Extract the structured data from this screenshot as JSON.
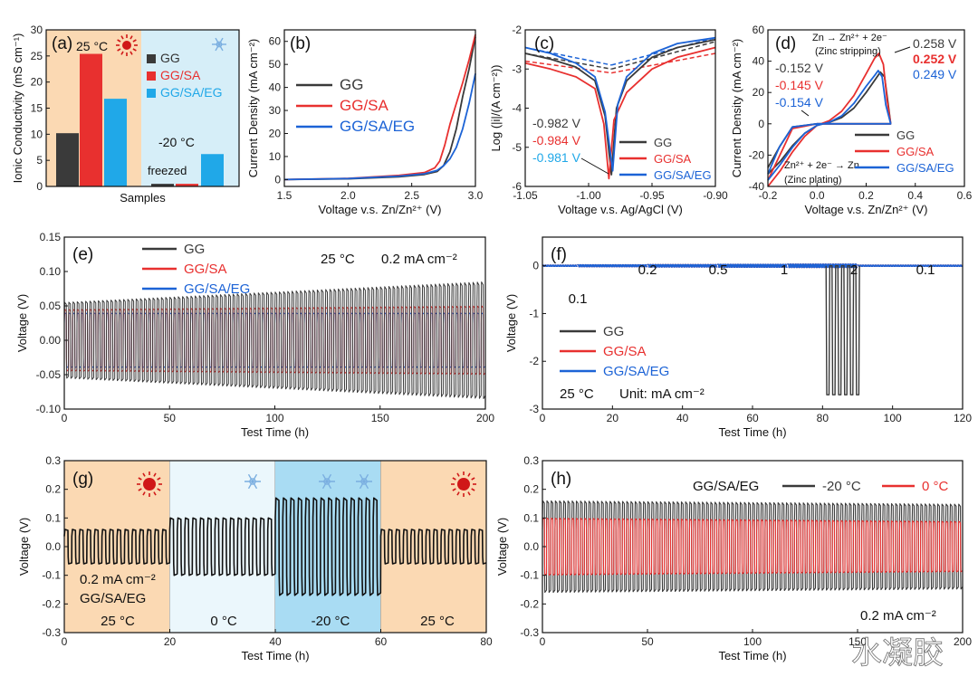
{
  "colors": {
    "gg": "#3a3a3a",
    "sa": "#e8302f",
    "eg": "#1c63d6",
    "eg_light": "#20a8e8",
    "warm_bg": "#fbd9b3",
    "cold_bg": "#d6eef8",
    "mid_bg": "#ebf7fc",
    "deep_bg": "#a9dcf3"
  },
  "watermark": "水凝胶",
  "chart_data": [
    {
      "id": "a",
      "type": "bar",
      "panel_label": "(a)",
      "title": "",
      "xlabel": "Samples",
      "ylabel": "Ionic Conductivity (mS cm⁻¹)",
      "ylim": [
        0,
        30
      ],
      "yticks": [
        "0",
        "5",
        "10",
        "15",
        "20",
        "25",
        "30"
      ],
      "categories": [
        "GG",
        "GG/SA",
        "GG/SA/EG"
      ],
      "series": [
        {
          "name": "25 °C",
          "values": [
            10.2,
            25.4,
            16.8
          ]
        },
        {
          "name": "-20 °C",
          "values": [
            0.5,
            0.5,
            6.2
          ]
        }
      ],
      "legend": [
        "GG",
        "GG/SA",
        "GG/SA/EG"
      ],
      "annotations": {
        "warm": "25 °C",
        "cold": "-20 °C",
        "frozen": "freezed"
      }
    },
    {
      "id": "b",
      "type": "line",
      "panel_label": "(b)",
      "xlabel": "Voltage v.s. Zn/Zn²⁺ (V)",
      "ylabel": "Current Density (mA cm⁻²)",
      "xlim": [
        1.5,
        3.0
      ],
      "ylim": [
        -3,
        65
      ],
      "xticks": [
        "1.5",
        "2.0",
        "2.5",
        "3.0"
      ],
      "yticks": [
        "0",
        "10",
        "20",
        "30",
        "40",
        "50",
        "60"
      ],
      "legend": [
        "GG",
        "GG/SA",
        "GG/SA/EG"
      ],
      "series": [
        {
          "name": "GG",
          "x": [
            1.5,
            2.0,
            2.4,
            2.6,
            2.7,
            2.75,
            2.8,
            2.85,
            2.9,
            2.95,
            3.0
          ],
          "y": [
            0,
            0.3,
            1.2,
            2.2,
            3.5,
            6,
            12,
            22,
            36,
            48,
            62
          ]
        },
        {
          "name": "GG/SA",
          "x": [
            1.5,
            2.0,
            2.4,
            2.6,
            2.68,
            2.72,
            2.76,
            2.8,
            2.85,
            2.9,
            2.95,
            3.0
          ],
          "y": [
            0,
            0.5,
            1.8,
            3,
            5,
            8,
            15,
            24,
            33,
            42,
            52,
            63
          ]
        },
        {
          "name": "GG/SA/EG",
          "x": [
            1.5,
            2.0,
            2.4,
            2.6,
            2.7,
            2.75,
            2.8,
            2.85,
            2.9,
            2.95,
            3.0
          ],
          "y": [
            0,
            0.4,
            1.5,
            2.5,
            4,
            6,
            9,
            14,
            22,
            33,
            46
          ]
        }
      ]
    },
    {
      "id": "c",
      "type": "line",
      "panel_label": "(c)",
      "xlabel": "Voltage v.s. Ag/AgCl (V)",
      "ylabel": "Log (|i|/(A cm⁻²))",
      "xlim": [
        -1.05,
        -0.9
      ],
      "ylim": [
        -6,
        -2
      ],
      "xticks": [
        "-1.05",
        "-1.00",
        "-0.95",
        "-0.90"
      ],
      "yticks": [
        "-6",
        "-5",
        "-4",
        "-3",
        "-2"
      ],
      "legend": [
        "GG",
        "GG/SA",
        "GG/SA/EG"
      ],
      "corrosion_potentials": [
        "-0.982 V",
        "-0.984 V",
        "-0.981 V"
      ],
      "series": [
        {
          "name": "GG",
          "x": [
            -1.05,
            -1.03,
            -1.01,
            -0.995,
            -0.987,
            -0.982,
            -0.978,
            -0.97,
            -0.95,
            -0.93,
            -0.9
          ],
          "y": [
            -2.6,
            -2.75,
            -2.95,
            -3.3,
            -4.2,
            -5.7,
            -4.0,
            -3.3,
            -2.7,
            -2.45,
            -2.25
          ]
        },
        {
          "name": "GG/SA",
          "x": [
            -1.05,
            -1.03,
            -1.01,
            -0.995,
            -0.988,
            -0.984,
            -0.98,
            -0.97,
            -0.95,
            -0.93,
            -0.9
          ],
          "y": [
            -2.85,
            -3.0,
            -3.2,
            -3.5,
            -4.4,
            -5.8,
            -4.3,
            -3.6,
            -3.0,
            -2.7,
            -2.45
          ]
        },
        {
          "name": "GG/SA/EG",
          "x": [
            -1.05,
            -1.03,
            -1.01,
            -0.995,
            -0.987,
            -0.981,
            -0.977,
            -0.97,
            -0.95,
            -0.93,
            -0.9
          ],
          "y": [
            -2.45,
            -2.6,
            -2.85,
            -3.2,
            -4.1,
            -5.6,
            -3.9,
            -3.2,
            -2.6,
            -2.35,
            -2.2
          ]
        }
      ]
    },
    {
      "id": "d",
      "type": "line",
      "panel_label": "(d)",
      "xlabel": "Voltage v.s. Zn/Zn²⁺ (V)",
      "ylabel": "Current Density (mA cm⁻²)",
      "xlim": [
        -0.2,
        0.6
      ],
      "ylim": [
        -40,
        60
      ],
      "xticks": [
        "-0.2",
        "0.0",
        "0.2",
        "0.4",
        "0.6"
      ],
      "yticks": [
        "-40",
        "-20",
        "0",
        "20",
        "40",
        "60"
      ],
      "legend": [
        "GG",
        "GG/SA",
        "GG/SA/EG"
      ],
      "annotations": {
        "stripping": "Zn → Zn²⁺ + 2e⁻",
        "stripping_note": "(Zinc stripping)",
        "plating": "Zn²⁺ + 2e⁻ → Zn",
        "plating_note": "(Zinc plating)"
      },
      "nucleation_potentials": [
        "-0.152 V",
        "-0.145 V",
        "-0.154 V"
      ],
      "stripping_potentials": [
        "0.258 V",
        "0.252 V",
        "0.249 V"
      ],
      "series": [
        {
          "name": "GG",
          "x": [
            -0.2,
            -0.15,
            -0.1,
            -0.05,
            0.0,
            0.05,
            0.1,
            0.15,
            0.2,
            0.24,
            0.258,
            0.275,
            0.29,
            0.3,
            0.2,
            0.1,
            0.0,
            -0.1,
            -0.15,
            -0.2
          ],
          "y": [
            -32,
            -24,
            -14,
            -6,
            -1,
            1,
            4,
            10,
            20,
            29,
            33,
            30,
            12,
            0,
            0,
            0,
            0,
            -2,
            -14,
            -28
          ]
        },
        {
          "name": "GG/SA",
          "x": [
            -0.2,
            -0.15,
            -0.1,
            -0.05,
            0.0,
            0.05,
            0.1,
            0.15,
            0.2,
            0.235,
            0.252,
            0.27,
            0.285,
            0.3,
            0.2,
            0.1,
            0.0,
            -0.1,
            -0.145,
            -0.2
          ],
          "y": [
            -40,
            -30,
            -18,
            -8,
            -1,
            2,
            8,
            18,
            32,
            42,
            45,
            38,
            15,
            0,
            0,
            0,
            0,
            -3,
            -18,
            -36
          ]
        },
        {
          "name": "GG/SA/EG",
          "x": [
            -0.2,
            -0.15,
            -0.1,
            -0.05,
            0.0,
            0.05,
            0.1,
            0.15,
            0.2,
            0.235,
            0.249,
            0.265,
            0.28,
            0.3,
            0.2,
            0.1,
            0.0,
            -0.1,
            -0.154,
            -0.2
          ],
          "y": [
            -36,
            -26,
            -15,
            -6,
            -1,
            1,
            5,
            13,
            24,
            31,
            34,
            30,
            12,
            0,
            0,
            0,
            0,
            -2,
            -15,
            -32
          ]
        }
      ]
    },
    {
      "id": "e",
      "type": "line",
      "panel_label": "(e)",
      "xlabel": "Test Time (h)",
      "ylabel": "Voltage (V)",
      "xlim": [
        0,
        200
      ],
      "ylim": [
        -0.1,
        0.15
      ],
      "xticks": [
        "0",
        "50",
        "100",
        "150",
        "200"
      ],
      "yticks": [
        "-0.10",
        "-0.05",
        "0.00",
        "0.05",
        "0.10",
        "0.15"
      ],
      "legend": [
        "GG",
        "GG/SA",
        "GG/SA/EG"
      ],
      "conditions": [
        "25 °C",
        "0.2 mA cm⁻²"
      ],
      "series": [
        {
          "name": "GG",
          "amplitude_start": 0.055,
          "amplitude_end": 0.085,
          "cycles": 100
        },
        {
          "name": "GG/SA",
          "amplitude_start": 0.045,
          "amplitude_end": 0.05,
          "cycles": 100
        },
        {
          "name": "GG/SA/EG",
          "amplitude_start": 0.04,
          "amplitude_end": 0.04,
          "cycles": 100
        }
      ]
    },
    {
      "id": "f",
      "type": "line",
      "panel_label": "(f)",
      "xlabel": "Test Time (h)",
      "ylabel": "Voltage (V)",
      "xlim": [
        0,
        120
      ],
      "ylim": [
        -3,
        0.6
      ],
      "xticks": [
        "0",
        "20",
        "40",
        "60",
        "80",
        "100",
        "120"
      ],
      "yticks": [
        "-3",
        "-2",
        "-1",
        "0"
      ],
      "legend": [
        "GG",
        "GG/SA",
        "GG/SA/EG"
      ],
      "rate_labels": [
        "0.1",
        "0.2",
        "0.5",
        "1",
        "2",
        "0.1"
      ],
      "conditions": [
        "25 °C",
        "Unit: mA cm⁻²"
      ],
      "series": [
        {
          "name": "GG",
          "failure_time_range": [
            81,
            91
          ],
          "failure_voltage": -2.7
        },
        {
          "name": "GG/SA",
          "steady_amplitude": 0.03
        },
        {
          "name": "GG/SA/EG",
          "steady_amplitude": 0.03
        }
      ]
    },
    {
      "id": "g",
      "type": "line",
      "panel_label": "(g)",
      "xlabel": "Test Time (h)",
      "ylabel": "Voltage (V)",
      "xlim": [
        0,
        80
      ],
      "ylim": [
        -0.3,
        0.3
      ],
      "xticks": [
        "0",
        "20",
        "40",
        "60",
        "80"
      ],
      "yticks": [
        "-0.3",
        "-0.2",
        "-0.1",
        "0.0",
        "0.1",
        "0.2",
        "0.3"
      ],
      "conditions": [
        "0.2 mA cm⁻²",
        "GG/SA/EG"
      ],
      "segments": [
        {
          "label": "25 °C",
          "start": 0,
          "end": 20,
          "amplitude": 0.06
        },
        {
          "label": "0 °C",
          "start": 20,
          "end": 40,
          "amplitude": 0.1
        },
        {
          "label": "-20 °C",
          "start": 40,
          "end": 60,
          "amplitude": 0.17
        },
        {
          "label": "25 °C",
          "start": 60,
          "end": 80,
          "amplitude": 0.06
        }
      ]
    },
    {
      "id": "h",
      "type": "line",
      "panel_label": "(h)",
      "xlabel": "Test Time (h)",
      "ylabel": "Voltage (V)",
      "xlim": [
        0,
        200
      ],
      "ylim": [
        -0.3,
        0.3
      ],
      "xticks": [
        "0",
        "50",
        "100",
        "150",
        "200"
      ],
      "yticks": [
        "-0.3",
        "-0.2",
        "-0.1",
        "0.0",
        "0.1",
        "0.2",
        "0.3"
      ],
      "legend_title": "GG/SA/EG",
      "legend": [
        "-20 °C",
        "0 °C"
      ],
      "conditions": [
        "0.2 mA cm⁻²"
      ],
      "series": [
        {
          "name": "-20 °C",
          "amplitude": 0.16,
          "cycles": 100
        },
        {
          "name": "0 °C",
          "amplitude": 0.1,
          "cycles": 100
        }
      ]
    }
  ]
}
